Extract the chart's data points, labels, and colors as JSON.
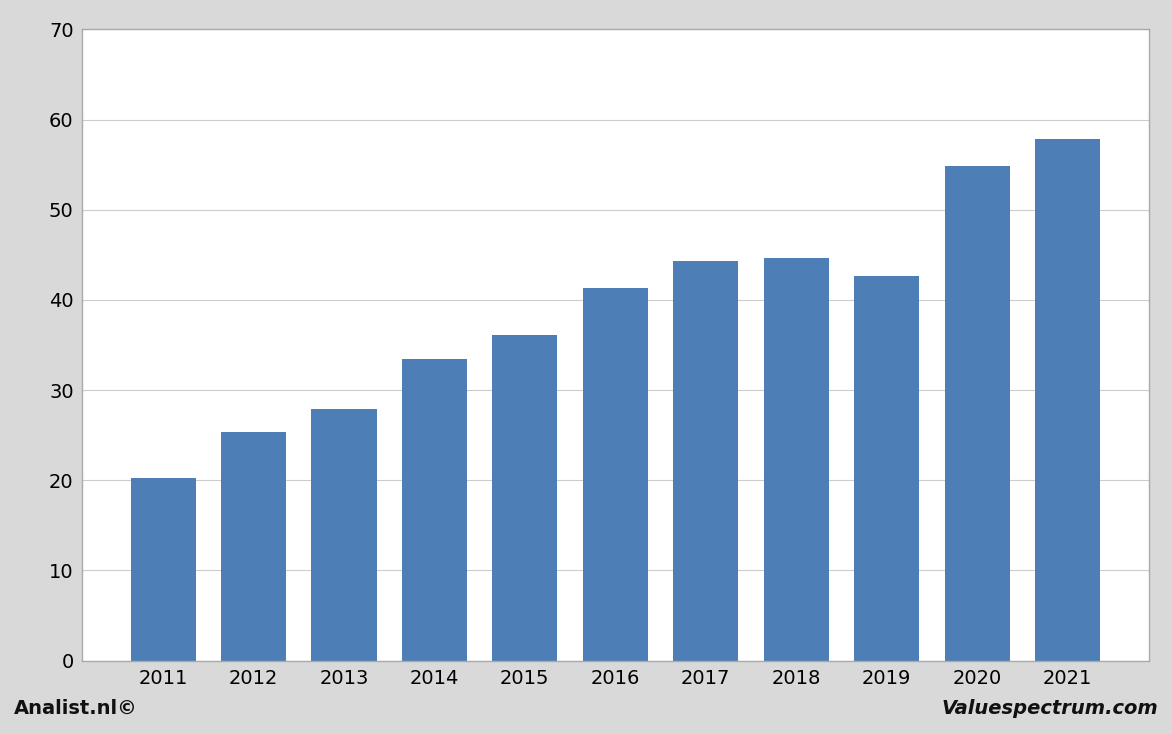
{
  "categories": [
    "2011",
    "2012",
    "2013",
    "2014",
    "2015",
    "2016",
    "2017",
    "2018",
    "2019",
    "2020",
    "2021"
  ],
  "values": [
    20.3,
    25.3,
    27.9,
    33.5,
    36.1,
    41.3,
    44.3,
    44.6,
    42.7,
    54.9,
    57.8
  ],
  "bar_color": "#4d7eb5",
  "ylim": [
    0,
    70
  ],
  "yticks": [
    0,
    10,
    20,
    30,
    40,
    50,
    60,
    70
  ],
  "outer_bg_color": "#d9d9d9",
  "plot_bg_color": "#ffffff",
  "border_color": "#aaaaaa",
  "grid_color": "#cccccc",
  "footer_left": "Analist.nl©",
  "footer_right": "Valuespectrum.com",
  "tick_fontsize": 14,
  "footer_fontsize": 14
}
